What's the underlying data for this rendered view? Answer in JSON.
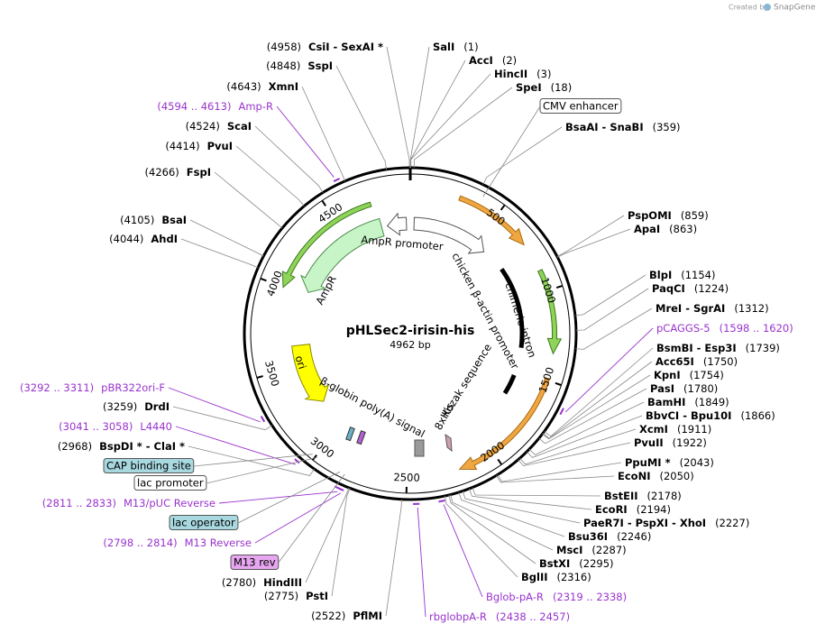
{
  "watermark": {
    "prefix": "Created by",
    "brand": "SnapGene"
  },
  "plasmid": {
    "name": "pHLSec2-irisin-his",
    "length": {
      "value": 4962,
      "label": "4962 bp"
    }
  },
  "ring_ticks": [
    500,
    1000,
    1500,
    2000,
    2500,
    3000,
    3500,
    4000,
    4500
  ],
  "sites": [
    {
      "enzymes": "CsiI - SexAI *",
      "position": {
        "value": 4958,
        "label": "(4958)"
      }
    },
    {
      "enzymes": "SspI",
      "position": {
        "value": 4848,
        "label": "(4848)"
      }
    },
    {
      "enzymes": "XmnI",
      "position": {
        "value": 4643,
        "label": "(4643)"
      }
    },
    {
      "enzymes": "ScaI",
      "position": {
        "value": 4524,
        "label": "(4524)"
      }
    },
    {
      "enzymes": "PvuI",
      "position": {
        "value": 4414,
        "label": "(4414)"
      }
    },
    {
      "enzymes": "FspI",
      "position": {
        "value": 4266,
        "label": "(4266)"
      }
    },
    {
      "enzymes": "BsaI",
      "position": {
        "value": 4105,
        "label": "(4105)"
      }
    },
    {
      "enzymes": "AhdI",
      "position": {
        "value": 4044,
        "label": "(4044)"
      }
    },
    {
      "enzymes": "DrdI",
      "position": {
        "value": 3259,
        "label": "(3259)"
      }
    },
    {
      "enzymes": "BspDI * - ClaI *",
      "position": {
        "value": 2968,
        "label": "(2968)"
      }
    },
    {
      "enzymes": "HindIII",
      "position": {
        "value": 2780,
        "label": "(2780)"
      }
    },
    {
      "enzymes": "PstI",
      "position": {
        "value": 2775,
        "label": "(2775)"
      }
    },
    {
      "enzymes": "PflMI",
      "position": {
        "value": 2522,
        "label": "(2522)"
      }
    },
    {
      "enzymes": "SalI",
      "position": {
        "value": 1,
        "label": "(1)"
      }
    },
    {
      "enzymes": "AccI",
      "position": {
        "value": 2,
        "label": "(2)"
      }
    },
    {
      "enzymes": "HincII",
      "position": {
        "value": 3,
        "label": "(3)"
      }
    },
    {
      "enzymes": "SpeI",
      "position": {
        "value": 18,
        "label": "(18)"
      }
    },
    {
      "enzymes": "BsaAI - SnaBI",
      "position": {
        "value": 359,
        "label": "(359)"
      }
    },
    {
      "enzymes": "PspOMI",
      "position": {
        "value": 859,
        "label": "(859)"
      }
    },
    {
      "enzymes": "ApaI",
      "position": {
        "value": 863,
        "label": "(863)"
      }
    },
    {
      "enzymes": "BlpI",
      "position": {
        "value": 1154,
        "label": "(1154)"
      }
    },
    {
      "enzymes": "PaqCI",
      "position": {
        "value": 1224,
        "label": "(1224)"
      }
    },
    {
      "enzymes": "MreI - SgrAI",
      "position": {
        "value": 1312,
        "label": "(1312)"
      }
    },
    {
      "enzymes": "BsmBI - Esp3I",
      "position": {
        "value": 1739,
        "label": "(1739)"
      }
    },
    {
      "enzymes": "Acc65I",
      "position": {
        "value": 1750,
        "label": "(1750)"
      }
    },
    {
      "enzymes": "KpnI",
      "position": {
        "value": 1754,
        "label": "(1754)"
      }
    },
    {
      "enzymes": "PasI",
      "position": {
        "value": 1780,
        "label": "(1780)"
      }
    },
    {
      "enzymes": "BamHI",
      "position": {
        "value": 1849,
        "label": "(1849)"
      }
    },
    {
      "enzymes": "BbvCI - Bpu10I",
      "position": {
        "value": 1866,
        "label": "(1866)"
      }
    },
    {
      "enzymes": "XcmI",
      "position": {
        "value": 1911,
        "label": "(1911)"
      }
    },
    {
      "enzymes": "PvuII",
      "position": {
        "value": 1922,
        "label": "(1922)"
      }
    },
    {
      "enzymes": "PpuMI *",
      "position": {
        "value": 2043,
        "label": "(2043)"
      }
    },
    {
      "enzymes": "EcoNI",
      "position": {
        "value": 2050,
        "label": "(2050)"
      }
    },
    {
      "enzymes": "BstEII",
      "position": {
        "value": 2178,
        "label": "(2178)"
      }
    },
    {
      "enzymes": "EcoRI",
      "position": {
        "value": 2194,
        "label": "(2194)"
      }
    },
    {
      "enzymes": "PaeR7I - PspXI - XhoI",
      "position": {
        "value": 2227,
        "label": "(2227)"
      }
    },
    {
      "enzymes": "Bsu36I",
      "position": {
        "value": 2246,
        "label": "(2246)"
      }
    },
    {
      "enzymes": "MscI",
      "position": {
        "value": 2287,
        "label": "(2287)"
      }
    },
    {
      "enzymes": "BstXI",
      "position": {
        "value": 2295,
        "label": "(2295)"
      }
    },
    {
      "enzymes": "BglII",
      "position": {
        "value": 2316,
        "label": "(2316)"
      }
    }
  ],
  "primers": [
    {
      "name": "Amp-R",
      "start": 4594,
      "end": 4613,
      "range": "(4594 .. 4613)"
    },
    {
      "name": "pBR322ori-F",
      "start": 3292,
      "end": 3311,
      "range": "(3292 .. 3311)"
    },
    {
      "name": "L4440",
      "start": 3041,
      "end": 3058,
      "range": "(3041 .. 3058)"
    },
    {
      "name": "M13/pUC Reverse",
      "start": 2811,
      "end": 2833,
      "range": "(2811 .. 2833)"
    },
    {
      "name": "M13 Reverse",
      "start": 2798,
      "end": 2814,
      "range": "(2798 .. 2814)"
    },
    {
      "name": "pCAGGS-5",
      "start": 1598,
      "end": 1620,
      "range": "(1598 .. 1620)"
    },
    {
      "name": "Bglob-pA-R",
      "start": 2319,
      "end": 2338,
      "range": "(2319 .. 2338)"
    },
    {
      "name": "rbglobpA-R",
      "start": 2438,
      "end": 2457,
      "range": "(2438 .. 2457)"
    }
  ],
  "features": {
    "boxed": [
      "CMV enhancer",
      "CAP binding site",
      "lac promoter",
      "lac operator",
      "M13 rev"
    ],
    "labels": [
      "AmpR promoter",
      "AmpR",
      "ori",
      "chicken β-actin promoter",
      "chimeric intron",
      "Kozak sequence",
      "8xHis",
      "β-globin poly(A) signal"
    ]
  }
}
